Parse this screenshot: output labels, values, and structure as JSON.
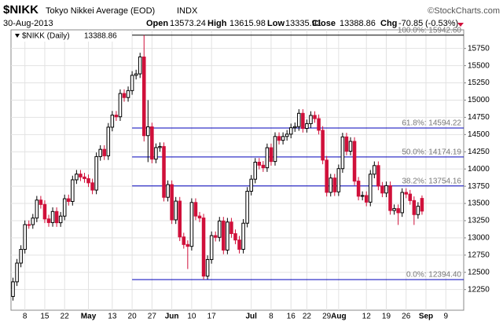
{
  "header": {
    "symbol": "$NIKK",
    "name": "Tokyo Nikkei Average (EOD)",
    "exchange": "INDX",
    "source": "©StockCharts.com",
    "date": "30-Aug-2013",
    "open_label": "Open",
    "high_label": "High",
    "low_label": "Low",
    "close_label": "Close",
    "change_label": "Chg",
    "change": {
      "value": -70.85,
      "label": "-70.85"
    },
    "change_pct": {
      "value": -0.53,
      "label": "(-0.53%)"
    }
  },
  "chart_data": {
    "type": "candlestick",
    "legend_label": "$NIKK (Daily)",
    "categories": [
      null,
      null,
      null,
      "8",
      null,
      null,
      null,
      null,
      "15",
      null,
      null,
      null,
      null,
      "22",
      null,
      null,
      null,
      null,
      null,
      "May",
      null,
      null,
      null,
      null,
      null,
      "13",
      null,
      null,
      null,
      null,
      "20",
      null,
      null,
      null,
      null,
      "27",
      null,
      null,
      null,
      null,
      "Jun",
      null,
      null,
      null,
      null,
      "10",
      null,
      null,
      null,
      null,
      "17",
      null,
      null,
      null,
      null,
      null,
      null,
      null,
      null,
      null,
      "Jul",
      null,
      null,
      null,
      null,
      "8",
      null,
      null,
      null,
      null,
      "16",
      null,
      null,
      null,
      "22",
      null,
      null,
      null,
      null,
      "29",
      null,
      null,
      "Aug",
      null,
      null,
      null,
      null,
      null,
      null,
      "12",
      null,
      null,
      null,
      null,
      "19",
      null,
      null,
      null,
      null,
      "26",
      null,
      null,
      null,
      null,
      "Sep",
      null,
      null,
      null,
      null,
      "9",
      null,
      null,
      null,
      null
    ],
    "bold_categories": [
      "May",
      "Jun",
      "Jul",
      "Aug",
      "Sep"
    ],
    "open": [
      12150,
      12362,
      12634,
      12833,
      13193,
      13192,
      13288,
      13549,
      13485,
      13275,
      13222,
      13383,
      13220,
      13316,
      13568,
      13529,
      13843,
      13926,
      13884,
      13860,
      13799,
      13694,
      14180,
      14285,
      14191,
      14607,
      14782,
      14758,
      15096,
      15037,
      15138,
      15360,
      15381,
      15626,
      14484,
      14612,
      14143,
      14311,
      14326,
      13589,
      13774,
      13262,
      13534,
      13014,
      12904,
      12877,
      13514,
      13317,
      13289,
      12445,
      12686,
      13033,
      13008,
      13245,
      12823,
      13230,
      13062,
      12969,
      12834,
      13213,
      13677,
      13852,
      14099,
      14055,
      14018,
      14309,
      14109,
      14472,
      14416,
      14472,
      14506,
      14599,
      14615,
      14808,
      14589,
      14658,
      14778,
      14731,
      14562,
      14129,
      13661,
      13869,
      13668,
      14005,
      14466,
      14258,
      14401,
      13824,
      13605,
      13615,
      13519,
      13925,
      14050,
      13752,
      13651,
      13758,
      13397,
      13425,
      13365,
      13660,
      13636,
      13542,
      13338,
      13573.24,
      null,
      null,
      null,
      null,
      null,
      null,
      null,
      null,
      null,
      null
    ],
    "high": [
      12422,
      12694,
      12893,
      13253,
      13253,
      13348,
      13609,
      13609,
      13545,
      13335,
      13443,
      13443,
      13376,
      13628,
      13628,
      13903,
      13986,
      13986,
      13944,
      13920,
      13859,
      14240,
      14345,
      14345,
      14667,
      14842,
      14842,
      15156,
      15156,
      15198,
      15420,
      15441,
      15687,
      15942.6,
      15000,
      14672,
      14371,
      14386,
      14386,
      13834,
      13834,
      13594,
      13594,
      13074,
      12964,
      13574,
      13574,
      13377,
      13349,
      12746,
      13093,
      13093,
      13305,
      13305,
      13290,
      13290,
      13122,
      13029,
      13273,
      13737,
      13912,
      14159,
      14159,
      14115,
      14369,
      14369,
      14532,
      14532,
      14532,
      14566,
      14659,
      14675,
      14868,
      14868,
      14718,
      14838,
      14838,
      14791,
      14622,
      14189,
      13929,
      13929,
      14065,
      14526,
      14526,
      14461,
      14461,
      13884,
      13675,
      13675,
      13985,
      14110,
      14110,
      13812,
      13818,
      13818,
      13485,
      13485,
      13720,
      13720,
      13696,
      13602,
      13519,
      13615.98,
      null,
      null,
      null,
      null,
      null,
      null,
      null,
      null,
      null,
      null
    ],
    "low": [
      12090,
      12302,
      12574,
      12773,
      13132,
      13132,
      13228,
      13425,
      13215,
      13162,
      13162,
      13160,
      13160,
      13256,
      13469,
      13469,
      13783,
      13824,
      13800,
      13739,
      13634,
      13634,
      14120,
      14131,
      14131,
      14547,
      14698,
      14698,
      14977,
      14977,
      15078,
      15300,
      15321,
      14400,
      14100,
      14083,
      14083,
      14251,
      13529,
      13529,
      13202,
      13202,
      12954,
      12844,
      12548,
      12817,
      13257,
      13229,
      12394.4,
      12400,
      12626,
      12948,
      12948,
      12763,
      12763,
      13002,
      12909,
      12774,
      12774,
      13153,
      13617,
      13792,
      13995,
      13958,
      13958,
      14049,
      14049,
      14356,
      14356,
      14412,
      14446,
      14539,
      14555,
      14529,
      14529,
      14598,
      14671,
      14502,
      14069,
      13601,
      13601,
      13608,
      13608,
      13945,
      14198,
      14198,
      13764,
      13545,
      13545,
      13459,
      13459,
      13865,
      13692,
      13591,
      13591,
      13337,
      13337,
      13188,
      13305,
      13576,
      13482,
      13188,
      13278,
      13335.91,
      null,
      null,
      null,
      null,
      null,
      null,
      null,
      null,
      null,
      null
    ],
    "close": [
      12362,
      12634,
      12833,
      13193,
      13192,
      13288,
      13549,
      13485,
      13275,
      13222,
      13383,
      13220,
      13316,
      13568,
      13529,
      13843,
      13926,
      13884,
      13860,
      13799,
      13694,
      14180,
      14285,
      14191,
      14607,
      14782,
      14758,
      15096,
      15037,
      15138,
      15360,
      15381,
      15627,
      14484,
      14612,
      14143,
      14311,
      14326,
      13589,
      13774,
      13262,
      13534,
      13014,
      12904,
      12877,
      13514,
      13317,
      13289,
      12445,
      12686,
      13033,
      13008,
      13245,
      12823,
      13230,
      13062,
      12969,
      12834,
      13213,
      13677,
      13852,
      14099,
      14055,
      14018,
      14309,
      14109,
      14472,
      14416,
      14472,
      14506,
      14599,
      14615,
      14808,
      14589,
      14658,
      14778,
      14731,
      14562,
      14129,
      13661,
      13869,
      13668,
      14005,
      14466,
      14258,
      14401,
      13824,
      13605,
      13615,
      13519,
      13925,
      14050,
      13752,
      13651,
      13758,
      13397,
      13425,
      13365,
      13660,
      13636,
      13542,
      13338,
      13459,
      13388.86,
      null,
      null,
      null,
      null,
      null,
      null,
      null,
      null,
      null,
      null
    ],
    "up_color": "#000000",
    "down_color": "#d0103a",
    "fib_levels": [
      {
        "value": 15942.6,
        "label": "100.0%: 15942.60",
        "color": "#000000"
      },
      {
        "value": 14594.22,
        "label": "61.8%: 14594.22",
        "color": "#0000bb"
      },
      {
        "value": 14174.19,
        "label": "50.0%: 14174.19",
        "color": "#0000bb"
      },
      {
        "value": 13754.16,
        "label": "38.2%: 13754.16",
        "color": "#0000bb"
      },
      {
        "value": 12394.4,
        "label": "0.0%: 12394.40",
        "color": "#0000bb"
      }
    ],
    "fib_start": "20",
    "ylim": [
      11950,
      16020
    ],
    "yticks": [
      12250,
      12500,
      12750,
      13000,
      13250,
      13500,
      13750,
      14000,
      14250,
      14500,
      14750,
      15000,
      15250,
      15500,
      15750
    ],
    "grid": true
  }
}
